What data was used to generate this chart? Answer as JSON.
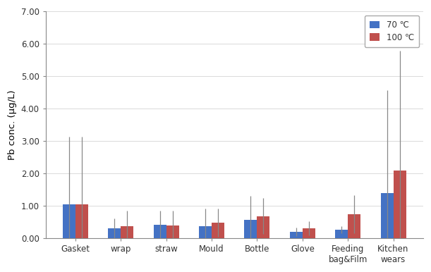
{
  "categories": [
    "Gasket",
    "wrap",
    "straw",
    "Mould",
    "Bottle",
    "Glove",
    "Feeding\nbag&Film",
    "Kitchen\nwears"
  ],
  "values_70": [
    1.05,
    0.3,
    0.4,
    0.37,
    0.57,
    0.19,
    0.26,
    1.38
  ],
  "values_100": [
    1.05,
    0.36,
    0.39,
    0.48,
    0.68,
    0.31,
    0.74,
    2.08
  ],
  "err_70": [
    2.07,
    0.3,
    0.45,
    0.54,
    0.73,
    0.13,
    0.1,
    3.18
  ],
  "err_100": [
    2.07,
    0.48,
    0.45,
    0.44,
    0.55,
    0.22,
    0.59,
    3.7
  ],
  "color_70": "#4472C4",
  "color_100": "#C0504D",
  "ylabel": "Pb conc. (μg/L)",
  "ylim": [
    0.0,
    7.0
  ],
  "yticks": [
    0.0,
    1.0,
    2.0,
    3.0,
    4.0,
    5.0,
    6.0,
    7.0
  ],
  "legend_70": "70 ℃",
  "legend_100": "100 ℃",
  "bar_width": 0.28,
  "figsize": [
    6.11,
    3.86
  ],
  "dpi": 100
}
